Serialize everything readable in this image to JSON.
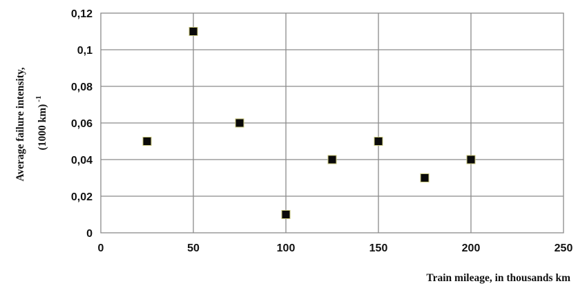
{
  "chart_data": {
    "type": "scatter",
    "title": "",
    "xlabel": "Train mileage, in thousands km",
    "ylabel_line1": "Average failure intensity,",
    "ylabel_line2_main": "(1000 km)",
    "ylabel_line2_sup": "-1",
    "xlim": [
      0,
      250
    ],
    "ylim": [
      0,
      0.12
    ],
    "grid": true,
    "x_ticks": [
      "0",
      "50",
      "100",
      "150",
      "200",
      "250"
    ],
    "y_ticks": [
      "0",
      "0,02",
      "0,04",
      "0,06",
      "0,08",
      "0,1",
      "0,12"
    ],
    "points": [
      {
        "x": 25,
        "y": 0.05
      },
      {
        "x": 50,
        "y": 0.11
      },
      {
        "x": 75,
        "y": 0.06
      },
      {
        "x": 100,
        "y": 0.01
      },
      {
        "x": 125,
        "y": 0.04
      },
      {
        "x": 150,
        "y": 0.05
      },
      {
        "x": 175,
        "y": 0.03
      },
      {
        "x": 200,
        "y": 0.04
      }
    ],
    "colors": {
      "marker_fill": "#0a0a0a",
      "marker_edge": "#c9c77a",
      "grid": "#8a8a8a"
    }
  }
}
